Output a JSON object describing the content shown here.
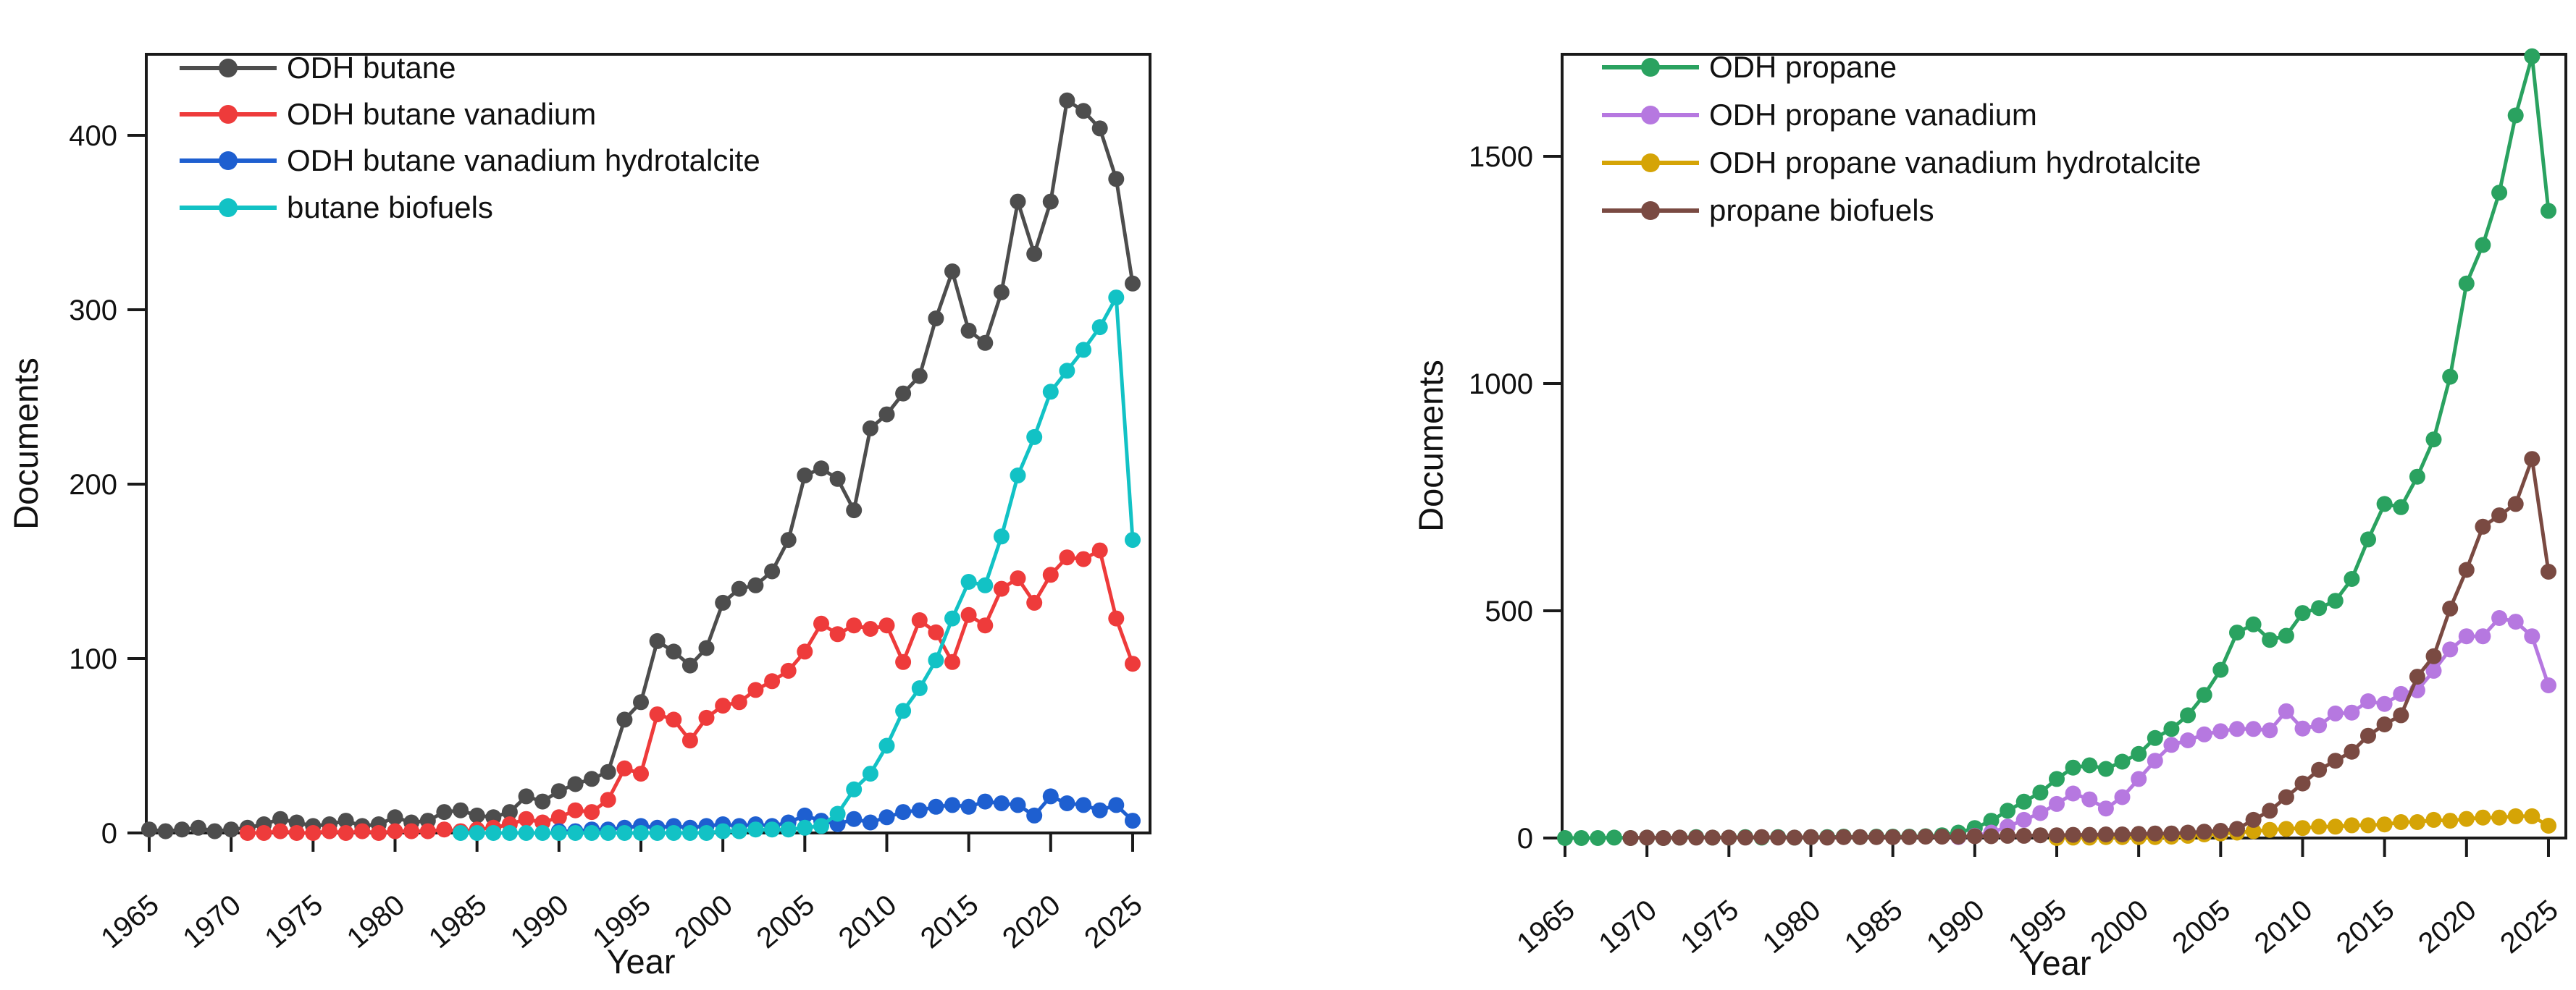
{
  "figure": {
    "background": "#ffffff",
    "description": "Documents per year for Scopus-style keyword searches, two line charts"
  },
  "chart_data": [
    {
      "type": "line",
      "title": "",
      "xlabel": "Year",
      "ylabel": "Documents",
      "x_years": {
        "from": 1965,
        "to": 2025,
        "step": 1
      },
      "x_tick_labels": [
        1965,
        1970,
        1975,
        1980,
        1985,
        1990,
        1995,
        2000,
        2005,
        2010,
        2015,
        2020,
        2025
      ],
      "y_tick_labels": [
        0,
        100,
        200,
        300,
        400
      ],
      "ylim": [
        0,
        446
      ],
      "grid": false,
      "legend_position": "top-left",
      "axis_color": "#1a1a1a",
      "series": [
        {
          "name": "ODH butane",
          "color": "#4d4d4d",
          "values": [
            2,
            1,
            2,
            3,
            1,
            2,
            3,
            5,
            8,
            6,
            4,
            5,
            7,
            4,
            5,
            9,
            6,
            7,
            12,
            13,
            10,
            9,
            12,
            21,
            18,
            24,
            28,
            31,
            35,
            65,
            75,
            110,
            104,
            96,
            106,
            132,
            140,
            142,
            150,
            168,
            205,
            209,
            203,
            185,
            232,
            240,
            252,
            262,
            295,
            322,
            288,
            281,
            310,
            362,
            332,
            362,
            420,
            414,
            404,
            375,
            315
          ]
        },
        {
          "name": "ODH butane vanadium",
          "color": "#ee3b3b",
          "values": [
            null,
            null,
            null,
            null,
            null,
            null,
            0,
            0,
            1,
            0,
            0,
            1,
            0,
            1,
            0,
            1,
            1,
            1,
            2,
            1,
            2,
            3,
            5,
            8,
            6,
            9,
            13,
            12,
            19,
            37,
            34,
            68,
            65,
            53,
            66,
            73,
            75,
            82,
            87,
            93,
            104,
            120,
            114,
            119,
            117,
            119,
            98,
            122,
            115,
            98,
            125,
            119,
            140,
            146,
            132,
            148,
            158,
            157,
            162,
            123,
            97
          ]
        },
        {
          "name": "ODH butane vanadium hydrotalcite",
          "color": "#1e5fd0",
          "values": [
            null,
            null,
            null,
            null,
            null,
            null,
            null,
            null,
            null,
            null,
            null,
            null,
            null,
            null,
            null,
            null,
            null,
            null,
            null,
            null,
            null,
            null,
            null,
            null,
            null,
            1,
            1,
            2,
            2,
            3,
            4,
            3,
            4,
            3,
            4,
            5,
            4,
            5,
            4,
            6,
            10,
            7,
            5,
            8,
            6,
            9,
            12,
            13,
            15,
            16,
            15,
            18,
            17,
            16,
            10,
            21,
            17,
            16,
            13,
            16,
            7
          ]
        },
        {
          "name": "butane biofuels",
          "color": "#12c2c5",
          "values": [
            null,
            null,
            null,
            null,
            null,
            null,
            null,
            null,
            null,
            null,
            null,
            null,
            null,
            null,
            null,
            null,
            null,
            null,
            null,
            0,
            0,
            0,
            0,
            0,
            0,
            0,
            0,
            0,
            0,
            0,
            0,
            0,
            0,
            0,
            0,
            1,
            1,
            2,
            2,
            2,
            3,
            4,
            11,
            25,
            34,
            50,
            70,
            83,
            99,
            123,
            144,
            142,
            170,
            205,
            227,
            253,
            265,
            277,
            290,
            307,
            168
          ]
        }
      ]
    },
    {
      "type": "line",
      "title": "",
      "xlabel": "Year",
      "ylabel": "Documents",
      "x_years": {
        "from": 1965,
        "to": 2025,
        "step": 1
      },
      "x_tick_labels": [
        1965,
        1970,
        1975,
        1980,
        1985,
        1990,
        1995,
        2000,
        2005,
        2010,
        2015,
        2020,
        2025
      ],
      "y_tick_labels": [
        0,
        500,
        1000,
        1500
      ],
      "ylim": [
        0,
        1724
      ],
      "grid": false,
      "legend_position": "top-left",
      "axis_color": "#1a1a1a",
      "series": [
        {
          "name": "ODH propane",
          "color": "#2aa260",
          "values": [
            0,
            0,
            0,
            1,
            0,
            1,
            0,
            1,
            2,
            1,
            1,
            2,
            1,
            2,
            1,
            2,
            2,
            3,
            2,
            3,
            3,
            3,
            4,
            6,
            12,
            22,
            38,
            60,
            80,
            100,
            130,
            155,
            160,
            152,
            168,
            185,
            220,
            240,
            270,
            315,
            370,
            452,
            470,
            436,
            445,
            495,
            506,
            522,
            570,
            657,
            735,
            728,
            795,
            877,
            1015,
            1220,
            1305,
            1420,
            1590,
            1720,
            1380
          ]
        },
        {
          "name": "ODH propane vanadium",
          "color": "#b678e0",
          "values": [
            null,
            null,
            null,
            null,
            null,
            null,
            null,
            null,
            null,
            null,
            null,
            null,
            null,
            null,
            null,
            null,
            null,
            null,
            null,
            null,
            null,
            null,
            null,
            null,
            2,
            5,
            12,
            25,
            40,
            55,
            75,
            98,
            85,
            65,
            90,
            130,
            170,
            205,
            215,
            228,
            235,
            240,
            240,
            237,
            279,
            241,
            248,
            274,
            276,
            301,
            295,
            317,
            325,
            368,
            415,
            444,
            444,
            484,
            476,
            444,
            336
          ]
        },
        {
          "name": "ODH propane vanadium hydrotalcite",
          "color": "#d5a406",
          "values": [
            null,
            null,
            null,
            null,
            null,
            null,
            null,
            null,
            null,
            null,
            null,
            null,
            null,
            null,
            null,
            null,
            null,
            null,
            null,
            null,
            null,
            null,
            null,
            null,
            null,
            null,
            null,
            null,
            null,
            null,
            0,
            1,
            1,
            2,
            2,
            2,
            2,
            3,
            5,
            8,
            10,
            12,
            15,
            18,
            20,
            22,
            25,
            25,
            28,
            28,
            30,
            35,
            35,
            40,
            38,
            42,
            45,
            45,
            48,
            48,
            27
          ]
        },
        {
          "name": "propane biofuels",
          "color": "#7a4a42",
          "values": [
            null,
            null,
            null,
            null,
            0,
            1,
            0,
            1,
            1,
            1,
            1,
            1,
            2,
            1,
            1,
            2,
            1,
            2,
            2,
            2,
            2,
            2,
            3,
            3,
            3,
            4,
            4,
            5,
            5,
            6,
            6,
            7,
            7,
            8,
            8,
            9,
            10,
            10,
            12,
            14,
            16,
            20,
            40,
            60,
            90,
            120,
            150,
            170,
            190,
            225,
            250,
            270,
            355,
            400,
            505,
            590,
            685,
            710,
            735,
            834,
            586
          ]
        }
      ]
    }
  ]
}
